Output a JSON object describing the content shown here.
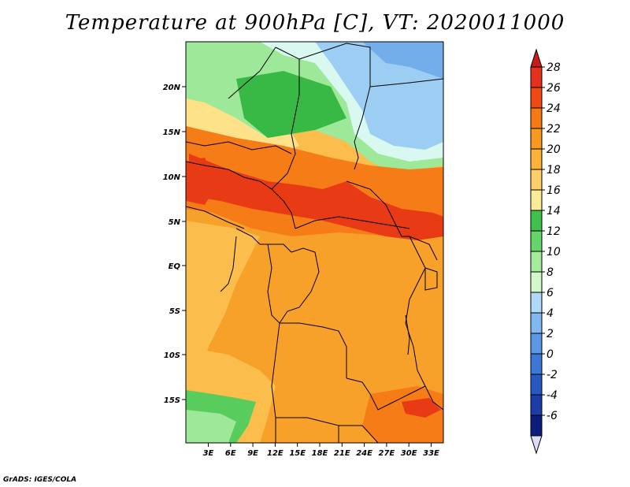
{
  "title": "Temperature at 900hPa [C], VT: 2020011000",
  "footer": "GrADS: IGES/COLA",
  "map": {
    "lat_labels": [
      "20N",
      "15N",
      "10N",
      "5N",
      "EQ",
      "5S",
      "10S",
      "15S"
    ],
    "lon_labels": [
      "3E",
      "6E",
      "9E",
      "12E",
      "15E",
      "18E",
      "21E",
      "24E",
      "27E",
      "30E",
      "33E"
    ]
  },
  "colorbar": {
    "labels": [
      "28",
      "26",
      "24",
      "22",
      "20",
      "18",
      "16",
      "14",
      "12",
      "10",
      "8",
      "6",
      "4",
      "2",
      "0",
      "-2",
      "-4",
      "-6"
    ],
    "colors": [
      "#e4301e",
      "#f04a12",
      "#f67a14",
      "#f89a20",
      "#fab23a",
      "#fcd068",
      "#fbeb96",
      "#40c04c",
      "#66d66a",
      "#a4ec9c",
      "#d2f8ca",
      "#b0d8f8",
      "#82b8f0",
      "#5c98e6",
      "#3c78d8",
      "#2858c4",
      "#1c3ca8",
      "#0c1c7a"
    ],
    "top_arrow_color": "#c81c14",
    "bottom_arrow_color": "#dcdcf4"
  },
  "colors": {
    "hot": "#e83a14",
    "warm": "#f67c18",
    "orange": "#f7a02a",
    "light_orange": "#fbbd4c",
    "pale": "#fde28a",
    "green": "#58cc5c",
    "dark_green": "#38b844",
    "light_green": "#9ee89a",
    "pale_cyan": "#d8f8f0",
    "light_blue": "#9ccdf2",
    "blue": "#74aeea",
    "border": "#000000"
  }
}
